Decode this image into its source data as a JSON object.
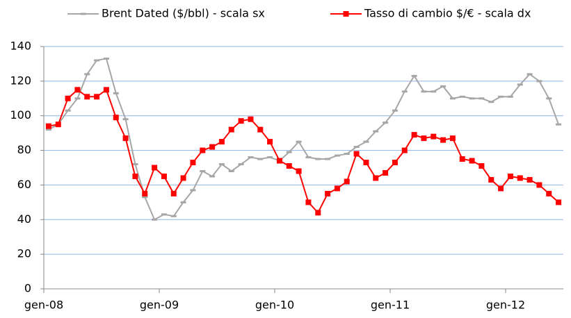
{
  "chart_data": {
    "type": "line",
    "categories": [
      "gen-08",
      null,
      null,
      null,
      null,
      null,
      null,
      null,
      null,
      null,
      null,
      null,
      "gen-09",
      null,
      null,
      null,
      null,
      null,
      null,
      null,
      null,
      null,
      null,
      null,
      "gen-10",
      null,
      null,
      null,
      null,
      null,
      null,
      null,
      null,
      null,
      null,
      null,
      "gen-11",
      null,
      null,
      null,
      null,
      null,
      null,
      null,
      null,
      null,
      null,
      null,
      "gen-12",
      null,
      null,
      null,
      null,
      null
    ],
    "series": [
      {
        "name": "Brent Dated ($/bbl) - scala sx",
        "color": "#a6a6a6",
        "marker": "dash",
        "values": [
          92,
          95,
          103,
          110,
          124,
          132,
          133,
          113,
          98,
          72,
          53,
          40,
          43,
          42,
          50,
          57,
          68,
          65,
          72,
          68,
          72,
          76,
          75,
          76,
          74,
          79,
          85,
          76,
          75,
          75,
          77,
          78,
          82,
          85,
          91,
          96,
          103,
          114,
          123,
          114,
          114,
          117,
          110,
          111,
          110,
          110,
          108,
          111,
          111,
          118,
          124,
          120,
          110,
          95
        ]
      },
      {
        "name": "Tasso di cambio $/€ - scala dx",
        "color": "#ff0000",
        "marker": "square",
        "values": [
          94,
          95,
          110,
          115,
          111,
          111,
          115,
          99,
          87,
          65,
          55,
          70,
          65,
          55,
          64,
          73,
          80,
          82,
          85,
          92,
          97,
          98,
          92,
          85,
          74,
          71,
          68,
          50,
          44,
          55,
          58,
          62,
          78,
          73,
          64,
          67,
          73,
          80,
          89,
          87,
          88,
          86,
          87,
          75,
          74,
          71,
          63,
          58,
          65,
          64,
          63,
          60,
          55,
          50
        ]
      }
    ],
    "ylim": [
      0,
      140
    ],
    "yticks": [
      0,
      20,
      40,
      60,
      80,
      100,
      120,
      140
    ],
    "grid": true,
    "legend": "top"
  }
}
